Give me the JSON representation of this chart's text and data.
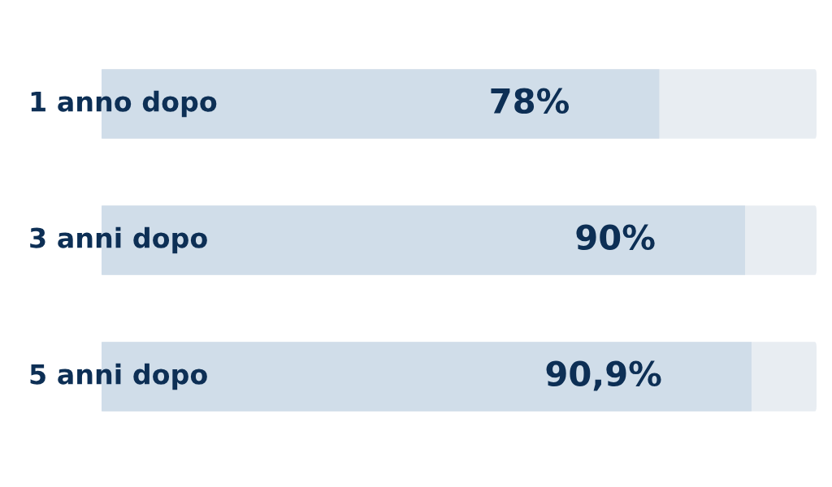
{
  "chart_data": {
    "type": "bar",
    "orientation": "horizontal",
    "categories": [
      "1 anno dopo",
      "3 anni dopo",
      "5 anni dopo"
    ],
    "values": [
      78,
      90,
      90.9
    ],
    "value_labels": [
      "78%",
      "90%",
      "90,9%"
    ],
    "color": "#d0dde9",
    "xlim": [
      0,
      100
    ],
    "tick_labels": "y"
  }
}
